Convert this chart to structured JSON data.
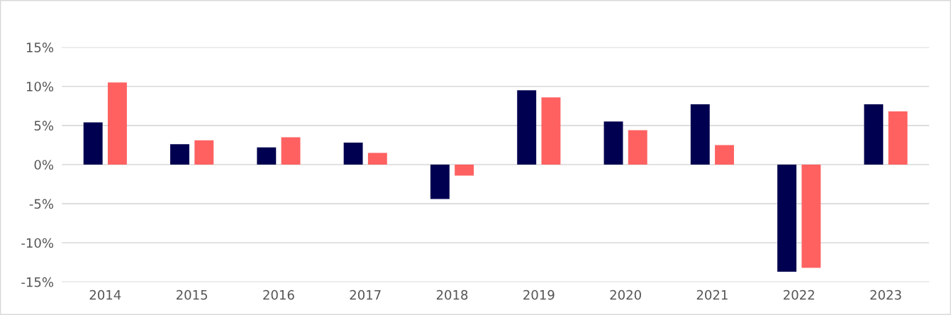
{
  "chart_data": {
    "type": "bar",
    "categories": [
      "2014",
      "2015",
      "2016",
      "2017",
      "2018",
      "2019",
      "2020",
      "2021",
      "2022",
      "2023"
    ],
    "series": [
      {
        "color": "#000050",
        "values": [
          5.4,
          2.6,
          2.2,
          2.8,
          -4.4,
          9.5,
          5.5,
          7.7,
          -13.7,
          7.7
        ]
      },
      {
        "color": "#ff6161",
        "values": [
          10.5,
          3.1,
          3.5,
          1.5,
          -1.4,
          8.6,
          4.4,
          2.5,
          -13.2,
          6.8
        ]
      }
    ],
    "ylim": [
      -15,
      15
    ],
    "yticks": [
      {
        "value": -15,
        "label": "-15%"
      },
      {
        "value": -10,
        "label": "-10%"
      },
      {
        "value": -5,
        "label": "-5%"
      },
      {
        "value": 0,
        "label": "0%"
      },
      {
        "value": 5,
        "label": "5%"
      },
      {
        "value": 10,
        "label": "10%"
      },
      {
        "value": 15,
        "label": "15%"
      }
    ],
    "grid": "y",
    "legend": false
  }
}
